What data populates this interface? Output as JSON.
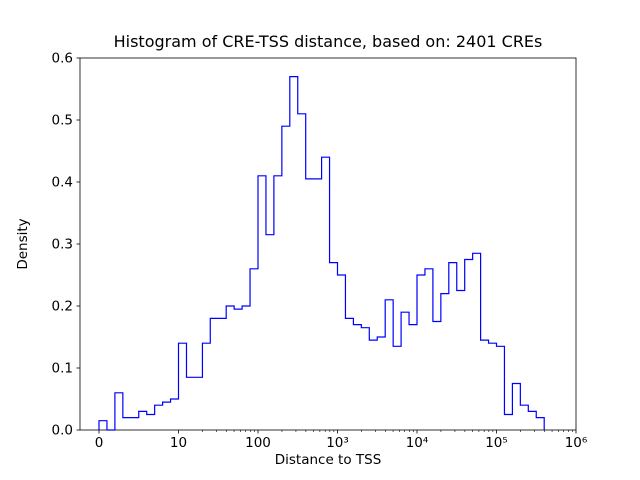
{
  "figure": {
    "title": "Histogram of CRE-TSS distance, based on: 2401 CREs",
    "xlabel": "Distance to TSS",
    "ylabel": "Density"
  },
  "chart_data": {
    "type": "bar",
    "subtype": "step-histogram",
    "x_scale": "symlog",
    "symlog_linthresh": 10,
    "line_color": "#0000ff",
    "background_color": "#ffffff",
    "grid": false,
    "legend": "none",
    "title": "Histogram of CRE-TSS distance, based on: 2401 CREs",
    "xlabel": "Distance to TSS",
    "ylabel": "Density",
    "ylim": [
      0,
      0.6
    ],
    "xlim": [
      0,
      1000000
    ],
    "x_ticks": [
      {
        "v": 0,
        "label": "0"
      },
      {
        "v": 10,
        "label": "10"
      },
      {
        "v": 100,
        "label": "100"
      },
      {
        "v": 1000,
        "label": "10³"
      },
      {
        "v": 10000,
        "label": "10⁴"
      },
      {
        "v": 100000,
        "label": "10⁵"
      },
      {
        "v": 1000000,
        "label": "10⁶"
      }
    ],
    "y_ticks": [
      {
        "v": 0.0,
        "label": "0.0"
      },
      {
        "v": 0.1,
        "label": "0.1"
      },
      {
        "v": 0.2,
        "label": "0.2"
      },
      {
        "v": 0.3,
        "label": "0.3"
      },
      {
        "v": 0.4,
        "label": "0.4"
      },
      {
        "v": 0.5,
        "label": "0.5"
      },
      {
        "v": 0.6,
        "label": "0.6"
      }
    ],
    "bin_edges": [
      0,
      1,
      2,
      3,
      4,
      5,
      6,
      7,
      8,
      9,
      10,
      12.6,
      15.8,
      20,
      25.1,
      31.6,
      39.8,
      50.1,
      63.1,
      79.4,
      100,
      125.9,
      158.5,
      199.5,
      251.2,
      316.2,
      398.1,
      501.2,
      631,
      794.3,
      1000,
      1258.9,
      1584.9,
      1995.3,
      2511.9,
      3162.3,
      3981.1,
      5011.9,
      6309.6,
      7943.3,
      10000,
      12589.3,
      15848.9,
      19952.6,
      25118.9,
      31622.8,
      39810.7,
      50118.7,
      63095.7,
      79432.8,
      100000,
      125892.5,
      158489.3,
      199526.2,
      251188.6,
      316227.8,
      398107.2,
      501187.2,
      630957.3,
      794328.2,
      1000000
    ],
    "densities": [
      0.015,
      0,
      0.06,
      0.02,
      0.02,
      0.03,
      0.025,
      0.04,
      0.045,
      0.05,
      0.14,
      0.085,
      0.085,
      0.14,
      0.18,
      0.18,
      0.2,
      0.195,
      0.2,
      0.26,
      0.41,
      0.315,
      0.41,
      0.49,
      0.57,
      0.51,
      0.405,
      0.405,
      0.44,
      0.27,
      0.25,
      0.18,
      0.17,
      0.165,
      0.145,
      0.15,
      0.21,
      0.135,
      0.19,
      0.17,
      0.25,
      0.26,
      0.175,
      0.22,
      0.27,
      0.225,
      0.275,
      0.285,
      0.145,
      0.14,
      0.135,
      0.025,
      0.075,
      0.04,
      0.03,
      0.02,
      0,
      0,
      0,
      0
    ]
  }
}
